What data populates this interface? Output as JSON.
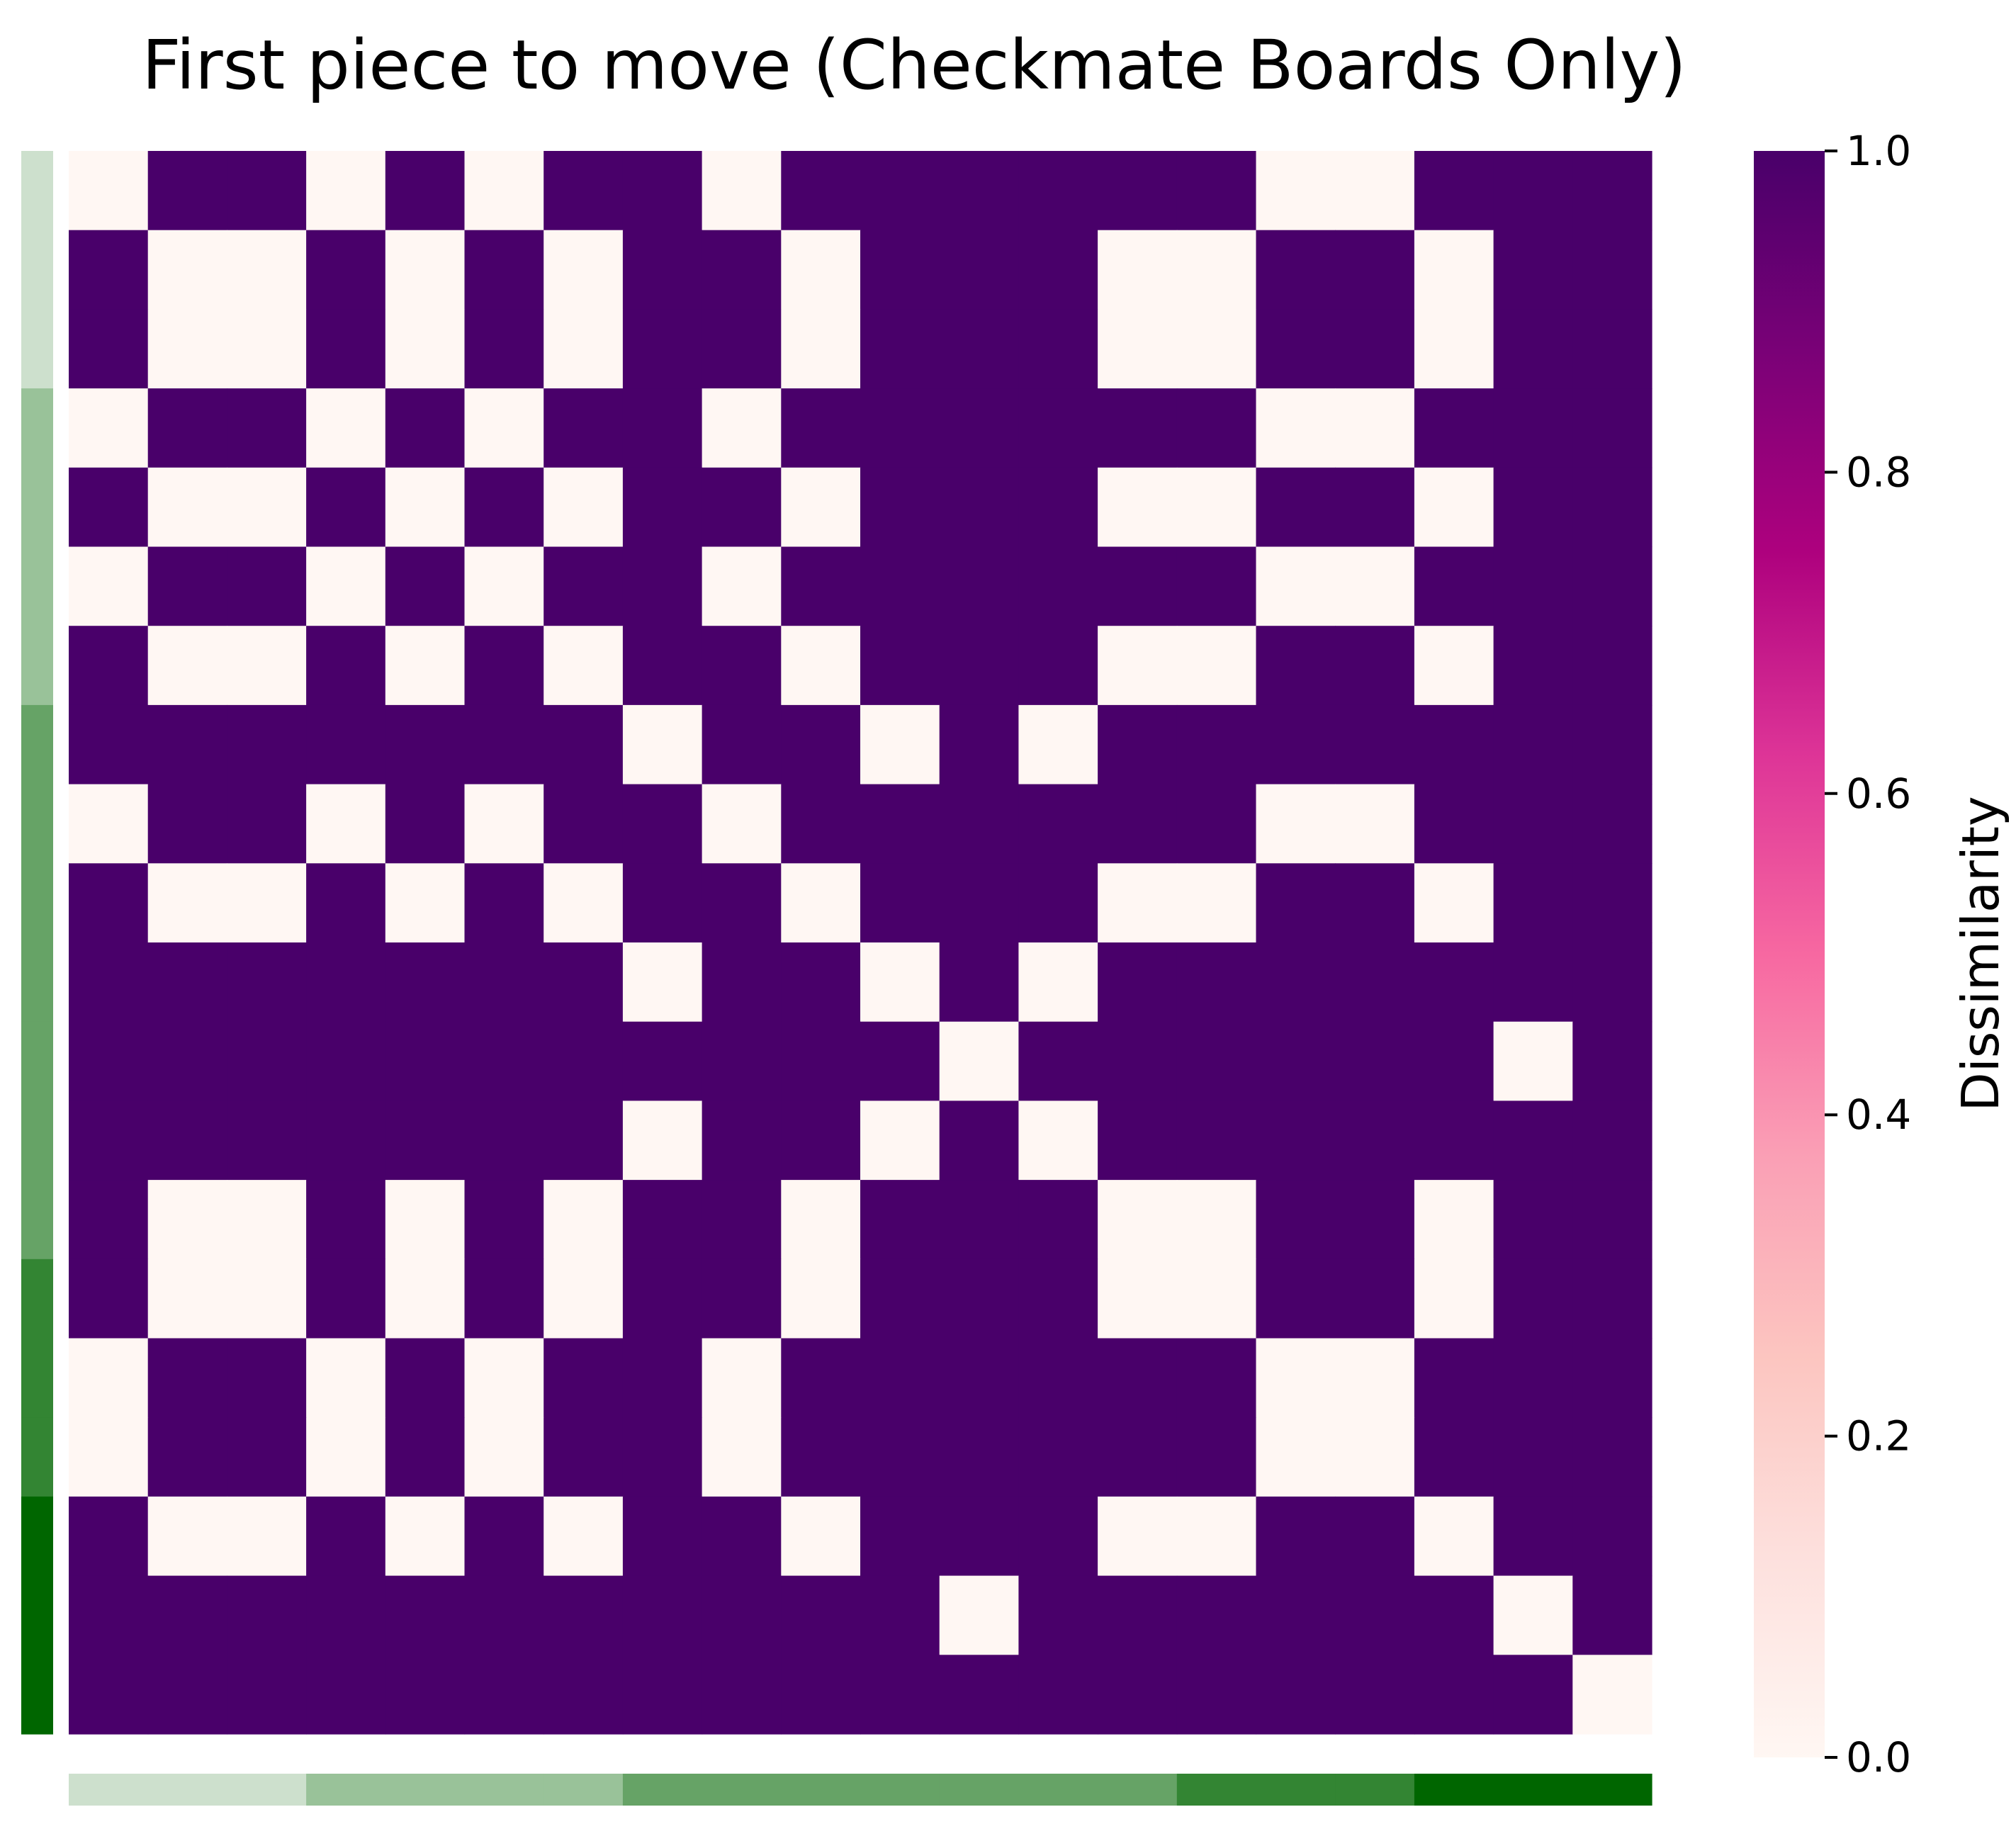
{
  "chart_data": {
    "type": "heatmap",
    "title": "First piece to move (Checkmate Boards Only)",
    "xlabel": "",
    "ylabel": "",
    "matrix": [
      [
        0,
        1,
        1,
        0,
        1,
        0,
        1,
        1,
        0,
        1,
        1,
        1,
        1,
        1,
        1,
        0,
        0,
        1,
        1,
        1
      ],
      [
        1,
        0,
        0,
        1,
        0,
        1,
        0,
        1,
        1,
        0,
        1,
        1,
        1,
        0,
        0,
        1,
        1,
        0,
        1,
        1
      ],
      [
        1,
        0,
        0,
        1,
        0,
        1,
        0,
        1,
        1,
        0,
        1,
        1,
        1,
        0,
        0,
        1,
        1,
        0,
        1,
        1
      ],
      [
        0,
        1,
        1,
        0,
        1,
        0,
        1,
        1,
        0,
        1,
        1,
        1,
        1,
        1,
        1,
        0,
        0,
        1,
        1,
        1
      ],
      [
        1,
        0,
        0,
        1,
        0,
        1,
        0,
        1,
        1,
        0,
        1,
        1,
        1,
        0,
        0,
        1,
        1,
        0,
        1,
        1
      ],
      [
        0,
        1,
        1,
        0,
        1,
        0,
        1,
        1,
        0,
        1,
        1,
        1,
        1,
        1,
        1,
        0,
        0,
        1,
        1,
        1
      ],
      [
        1,
        0,
        0,
        1,
        0,
        1,
        0,
        1,
        1,
        0,
        1,
        1,
        1,
        0,
        0,
        1,
        1,
        0,
        1,
        1
      ],
      [
        1,
        1,
        1,
        1,
        1,
        1,
        1,
        0,
        1,
        1,
        0,
        1,
        0,
        1,
        1,
        1,
        1,
        1,
        1,
        1
      ],
      [
        0,
        1,
        1,
        0,
        1,
        0,
        1,
        1,
        0,
        1,
        1,
        1,
        1,
        1,
        1,
        0,
        0,
        1,
        1,
        1
      ],
      [
        1,
        0,
        0,
        1,
        0,
        1,
        0,
        1,
        1,
        0,
        1,
        1,
        1,
        0,
        0,
        1,
        1,
        0,
        1,
        1
      ],
      [
        1,
        1,
        1,
        1,
        1,
        1,
        1,
        0,
        1,
        1,
        0,
        1,
        0,
        1,
        1,
        1,
        1,
        1,
        1,
        1
      ],
      [
        1,
        1,
        1,
        1,
        1,
        1,
        1,
        1,
        1,
        1,
        1,
        0,
        1,
        1,
        1,
        1,
        1,
        1,
        0,
        1
      ],
      [
        1,
        1,
        1,
        1,
        1,
        1,
        1,
        0,
        1,
        1,
        0,
        1,
        0,
        1,
        1,
        1,
        1,
        1,
        1,
        1
      ],
      [
        1,
        0,
        0,
        1,
        0,
        1,
        0,
        1,
        1,
        0,
        1,
        1,
        1,
        0,
        0,
        1,
        1,
        0,
        1,
        1
      ],
      [
        1,
        0,
        0,
        1,
        0,
        1,
        0,
        1,
        1,
        0,
        1,
        1,
        1,
        0,
        0,
        1,
        1,
        0,
        1,
        1
      ],
      [
        0,
        1,
        1,
        0,
        1,
        0,
        1,
        1,
        0,
        1,
        1,
        1,
        1,
        1,
        1,
        0,
        0,
        1,
        1,
        1
      ],
      [
        0,
        1,
        1,
        0,
        1,
        0,
        1,
        1,
        0,
        1,
        1,
        1,
        1,
        1,
        1,
        0,
        0,
        1,
        1,
        1
      ],
      [
        1,
        0,
        0,
        1,
        0,
        1,
        0,
        1,
        1,
        0,
        1,
        1,
        1,
        0,
        0,
        1,
        1,
        0,
        1,
        1
      ],
      [
        1,
        1,
        1,
        1,
        1,
        1,
        1,
        1,
        1,
        1,
        1,
        0,
        1,
        1,
        1,
        1,
        1,
        1,
        0,
        1
      ],
      [
        1,
        1,
        1,
        1,
        1,
        1,
        1,
        1,
        1,
        1,
        1,
        1,
        1,
        1,
        1,
        1,
        1,
        1,
        1,
        0
      ]
    ],
    "colorbar": {
      "label": "Dissimilarity",
      "range": [
        0.0,
        1.0
      ],
      "ticks": [
        "0.0",
        "0.2",
        "0.4",
        "0.6",
        "0.8",
        "1.0"
      ],
      "tick_values": [
        0.0,
        0.2,
        0.4,
        0.6,
        0.8,
        1.0
      ],
      "colormap": "RdPu",
      "stops": [
        "#fff7f3",
        "#fde0dd",
        "#fcc5c0",
        "#fa9fb5",
        "#f768a1",
        "#dd3497",
        "#ae017e",
        "#7a0177",
        "#49006a"
      ]
    },
    "group_bars": {
      "group_colors": [
        "#cde0cd",
        "#99c299",
        "#66a366",
        "#338533",
        "#006600"
      ],
      "row_groups": [
        0,
        0,
        0,
        1,
        1,
        1,
        1,
        2,
        2,
        2,
        2,
        2,
        2,
        2,
        3,
        3,
        3,
        4,
        4,
        4
      ],
      "col_groups": [
        0,
        0,
        0,
        1,
        1,
        1,
        1,
        2,
        2,
        2,
        2,
        2,
        2,
        2,
        3,
        3,
        3,
        4,
        4,
        4
      ]
    },
    "legend": "none",
    "grid": false
  }
}
